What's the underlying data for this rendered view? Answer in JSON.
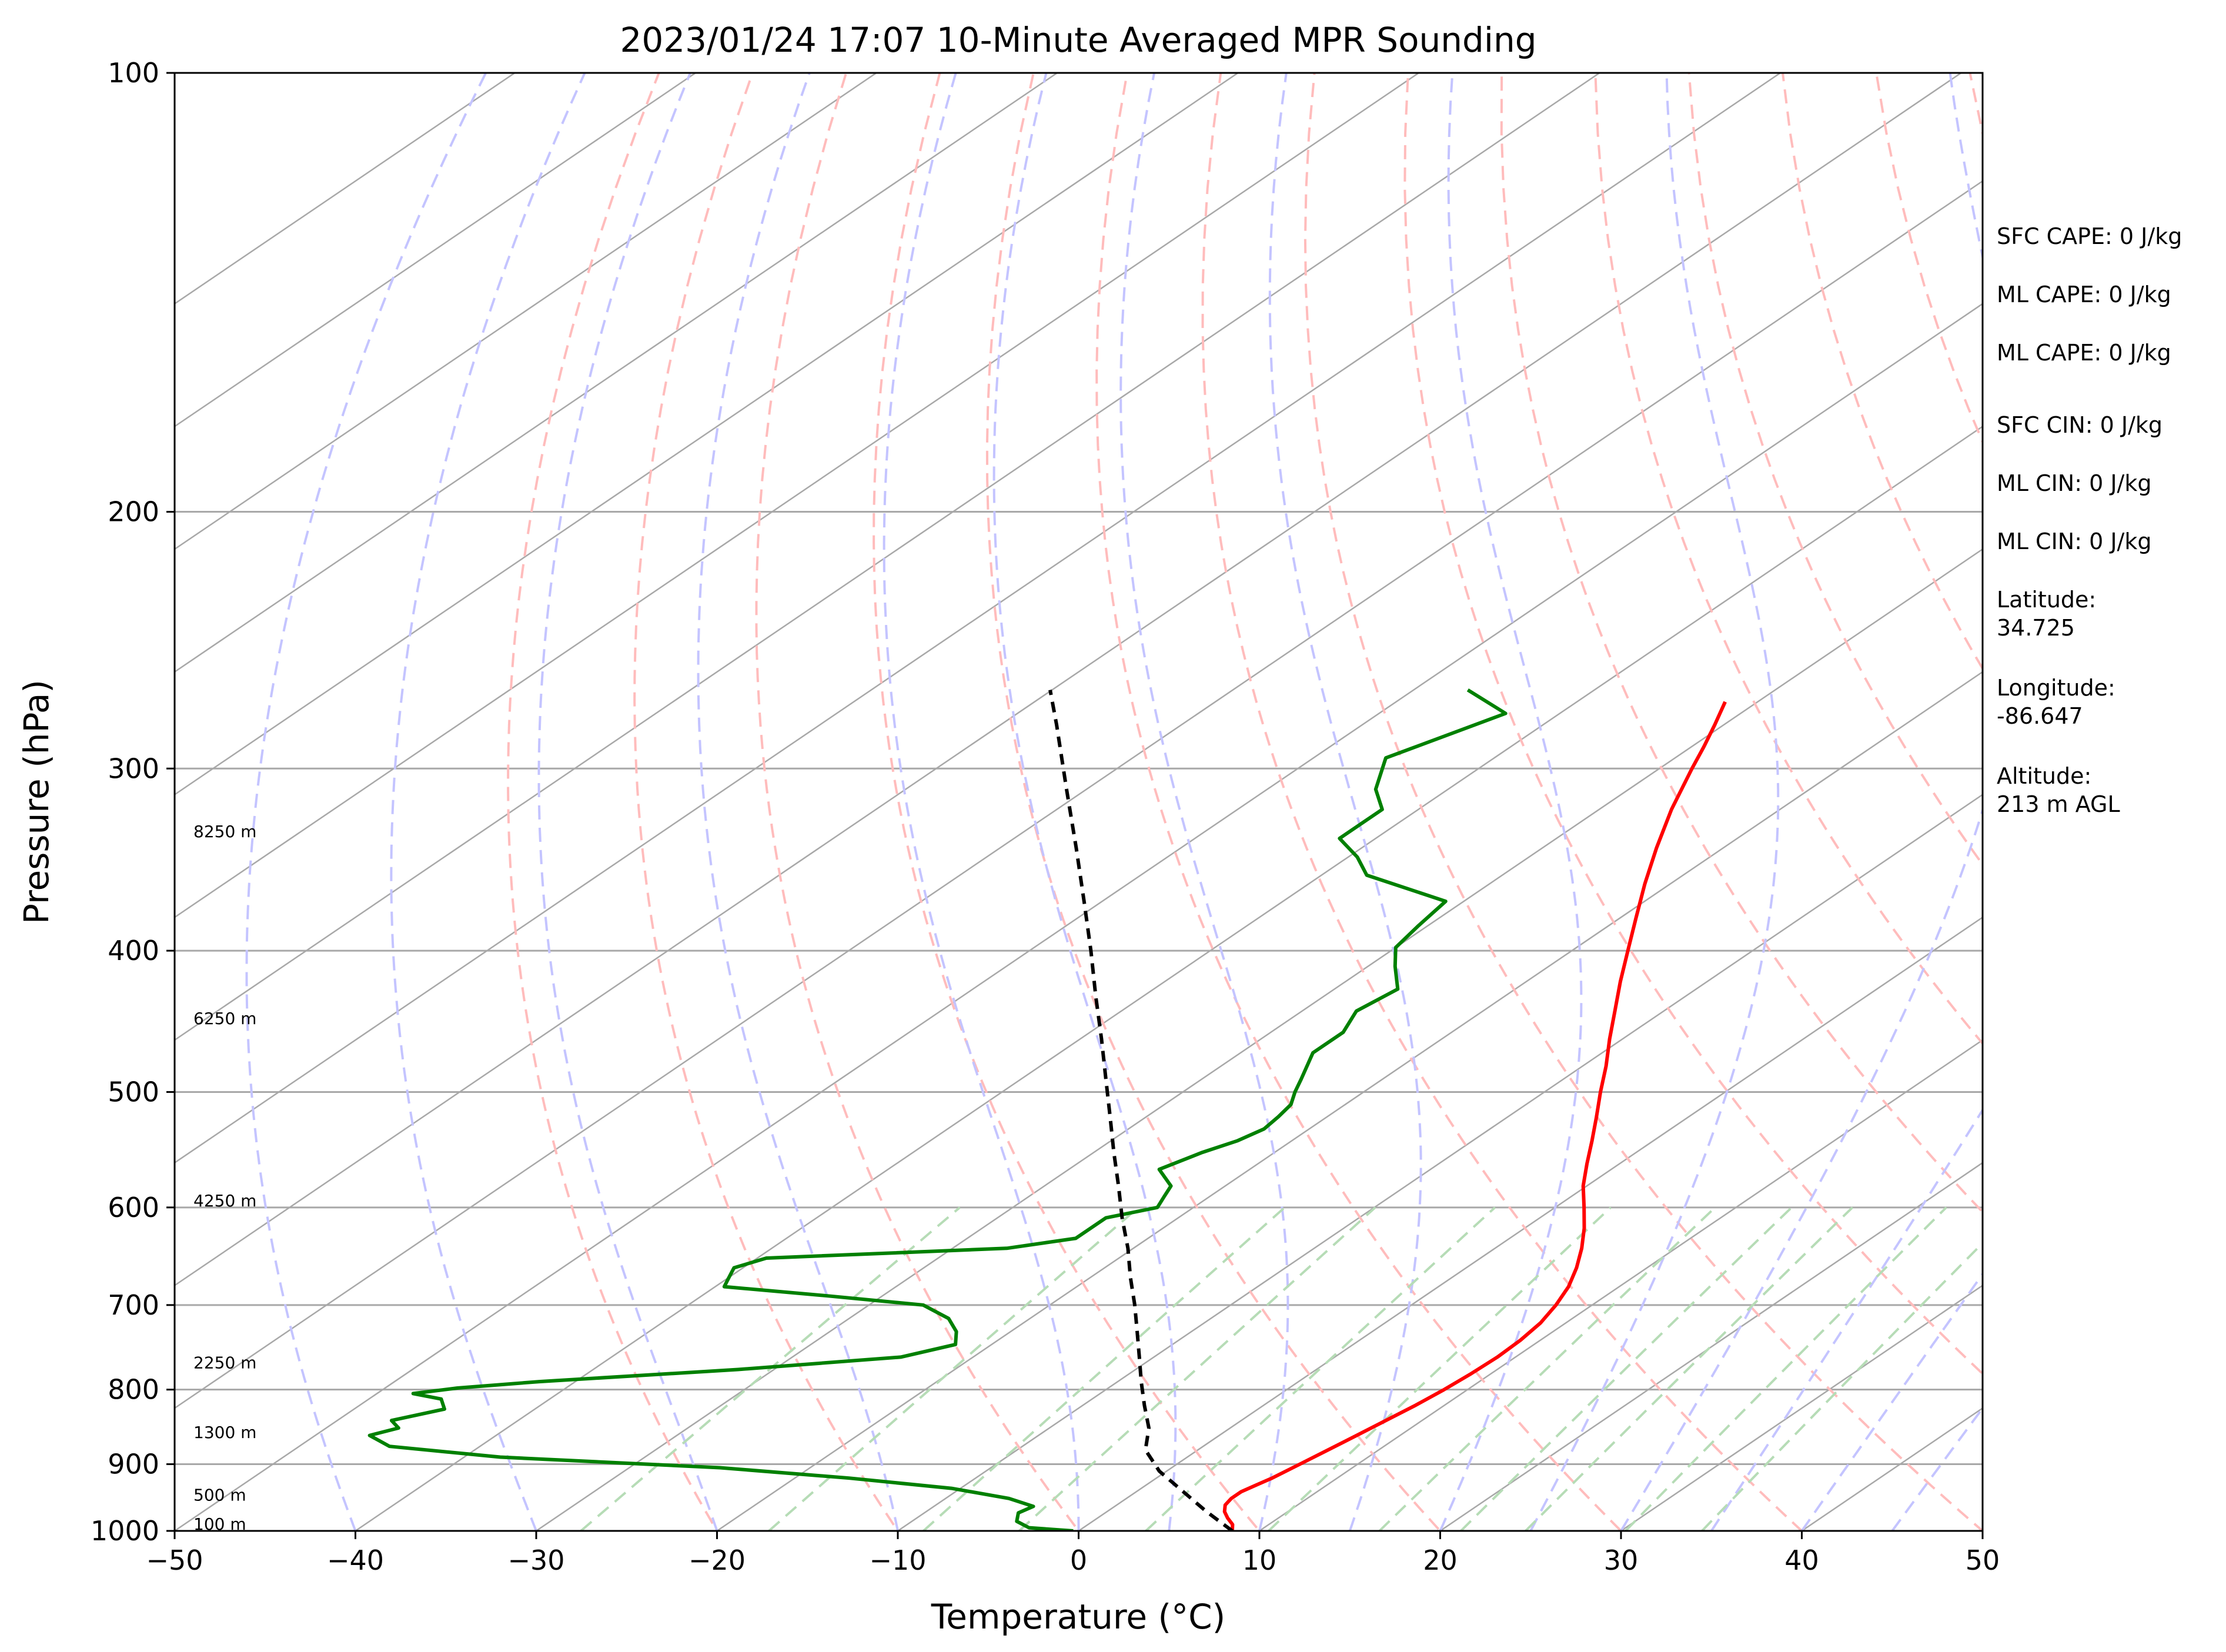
{
  "chart_data": {
    "type": "line",
    "title": "2023/01/24 17:07 10-Minute Averaged MPR Sounding",
    "xlabel": "Temperature (°C)",
    "ylabel": "Pressure (hPa)",
    "xlim": [
      -50,
      50
    ],
    "ylim": [
      1000,
      100
    ],
    "y_scale": "log",
    "grid": true,
    "x_ticks": [
      -50,
      -40,
      -30,
      -20,
      -10,
      0,
      10,
      20,
      30,
      40,
      50
    ],
    "x_tick_labels": [
      "−50",
      "−40",
      "−30",
      "−20",
      "−10",
      "0",
      "10",
      "20",
      "30",
      "40",
      "50"
    ],
    "y_ticks": [
      1000,
      900,
      800,
      700,
      600,
      500,
      400,
      300,
      200,
      100
    ],
    "y_tick_labels": [
      "1000",
      "900",
      "800",
      "700",
      "600",
      "500",
      "400",
      "300",
      "200",
      "100"
    ],
    "height_labels": [
      {
        "pressure": 1000,
        "text": "100 m"
      },
      {
        "pressure": 955,
        "text": "500 m"
      },
      {
        "pressure": 865,
        "text": "1300 m"
      },
      {
        "pressure": 775,
        "text": "2250 m"
      },
      {
        "pressure": 600,
        "text": "4250 m"
      },
      {
        "pressure": 450,
        "text": "6250 m"
      },
      {
        "pressure": 335,
        "text": "8250 m"
      }
    ],
    "colors": {
      "temperature": "#ff0000",
      "dewpoint": "#008000",
      "parcel": "#000000",
      "isotherm": "#a8a8a8",
      "dry_adiabat": "#ffbcbc",
      "moist_adiabat": "#c4c4ff",
      "mixing_ratio": "#b6dcb6"
    },
    "skew_factor": 51.6,
    "isotherms": [
      -150,
      -140,
      -130,
      -120,
      -110,
      -100,
      -90,
      -80,
      -70,
      -60,
      -50,
      -40,
      -30,
      -20,
      -10,
      0,
      10,
      20,
      30,
      40,
      50
    ],
    "dry_adiabats_theta_c": [
      -20,
      -10,
      0,
      10,
      20,
      30,
      40,
      50,
      60,
      70,
      80,
      90,
      100,
      110,
      120,
      130,
      140,
      150,
      160
    ],
    "moist_adiabats_surface_t": [
      -40,
      -30,
      -20,
      -10,
      0,
      5,
      10,
      15,
      20,
      25,
      30,
      35,
      40,
      45,
      50
    ],
    "mixing_ratios_gkg": [
      0.4,
      1,
      2,
      3,
      5,
      8,
      12,
      16,
      20,
      28,
      36
    ],
    "series": [
      {
        "name": "Temperature",
        "pressure": [
          1000,
          990,
          980,
          970,
          960,
          950,
          940,
          930,
          920,
          900,
          880,
          860,
          840,
          820,
          800,
          780,
          760,
          740,
          720,
          700,
          680,
          660,
          640,
          620,
          600,
          580,
          560,
          540,
          520,
          500,
          480,
          460,
          440,
          420,
          400,
          380,
          360,
          340,
          320,
          300,
          290,
          280,
          270
        ],
        "values": [
          8.5,
          8.0,
          7.2,
          6.5,
          6.0,
          5.8,
          5.8,
          6.1,
          6.4,
          6.8,
          7.2,
          7.6,
          8.0,
          8.4,
          8.7,
          8.9,
          9.0,
          8.9,
          8.6,
          8.0,
          7.2,
          6.1,
          4.8,
          3.3,
          1.6,
          -0.2,
          -1.8,
          -3.4,
          -5.1,
          -6.9,
          -8.7,
          -10.7,
          -12.7,
          -14.8,
          -16.9,
          -19.1,
          -21.4,
          -23.7,
          -26.0,
          -28.2,
          -29.3,
          -30.5,
          -31.8
        ]
      },
      {
        "name": "Dewpoint",
        "pressure": [
          1000,
          995,
          985,
          972,
          962,
          950,
          935,
          920,
          905,
          890,
          875,
          860,
          850,
          840,
          825,
          812,
          805,
          798,
          790,
          775,
          760,
          745,
          730,
          715,
          700,
          690,
          680,
          670,
          660,
          650,
          640,
          630,
          610,
          600,
          590,
          580,
          565,
          550,
          540,
          530,
          520,
          510,
          500,
          490,
          470,
          455,
          440,
          425,
          410,
          398,
          385,
          370,
          355,
          345,
          335,
          320,
          310,
          295,
          275,
          265
        ],
        "values": [
          -0.3,
          -3,
          -4.2,
          -4.8,
          -4.5,
          -6.5,
          -10.5,
          -17,
          -25,
          -38,
          -45,
          -47,
          -46,
          -47,
          -45,
          -46,
          -48,
          -46,
          -42,
          -32,
          -24,
          -22,
          -23,
          -24.5,
          -27,
          -33,
          -39.5,
          -40,
          -40.5,
          -39.5,
          -27,
          -24,
          -24,
          -22,
          -22.5,
          -23,
          -25,
          -24,
          -23,
          -22.5,
          -22.7,
          -23,
          -23.8,
          -24.5,
          -26,
          -26,
          -27,
          -26.5,
          -28.5,
          -30,
          -30.5,
          -31,
          -37.5,
          -39.5,
          -42,
          -42,
          -44,
          -46,
          -43,
          -47
        ]
      },
      {
        "name": "Parcel",
        "pressure": [
          1000,
          970,
          940,
          910,
          880,
          850,
          820,
          790,
          760,
          730,
          700,
          670,
          640,
          610,
          580,
          550,
          520,
          490,
          460,
          430,
          400,
          370,
          340,
          310,
          280,
          265
        ],
        "values": [
          8.5,
          5.5,
          2.6,
          -0.4,
          -2.9,
          -4.5,
          -6.6,
          -8.7,
          -10.8,
          -13.0,
          -15.3,
          -17.8,
          -20.3,
          -23.1,
          -25.9,
          -28.9,
          -32.0,
          -35.3,
          -38.8,
          -42.6,
          -46.6,
          -51.0,
          -55.8,
          -61.1,
          -66.9,
          -70.1
        ]
      }
    ]
  },
  "side_info": [
    {
      "label": "SFC CAPE: 0 J/kg"
    },
    {
      "label": "ML CAPE: 0 J/kg"
    },
    {
      "label": "ML CAPE: 0 J/kg"
    },
    {
      "label": "SFC CIN: 0 J/kg"
    },
    {
      "label": "ML CIN: 0 J/kg"
    },
    {
      "label": "ML CIN: 0 J/kg"
    },
    {
      "label": "Latitude:",
      "value": "34.725"
    },
    {
      "label": "Longitude:",
      "value": "-86.647"
    },
    {
      "label": "Altitude:",
      "value": "213 m AGL"
    }
  ]
}
